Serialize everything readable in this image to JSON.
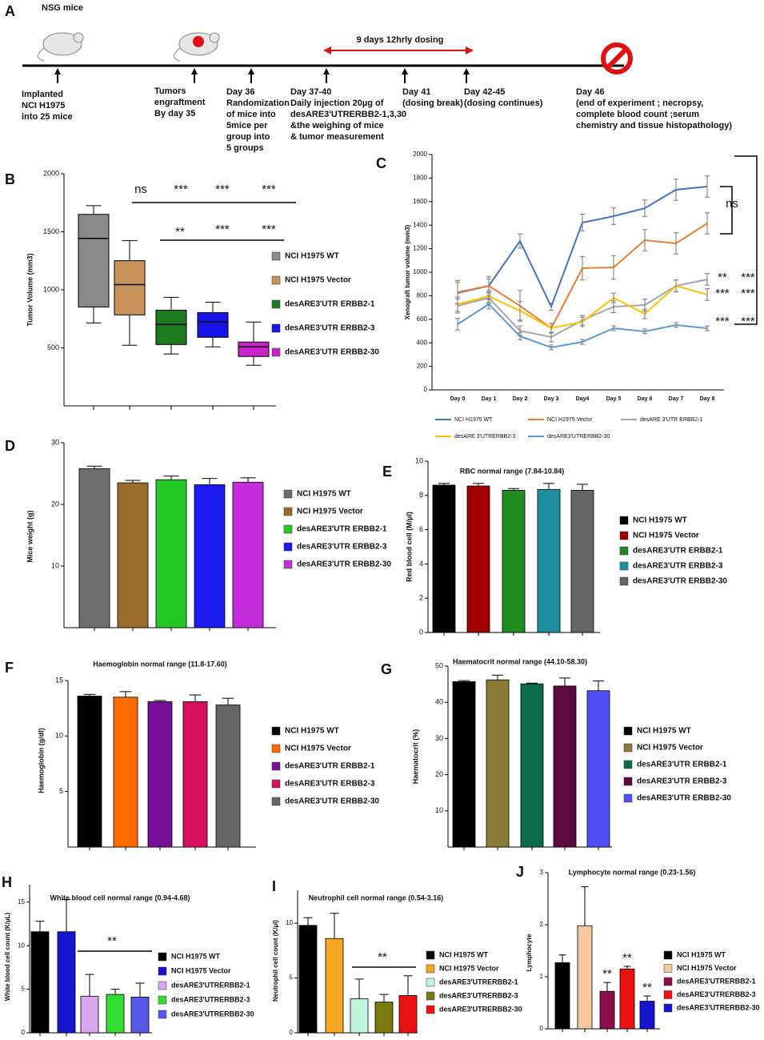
{
  "timeline": {
    "panel": "A",
    "subtitle": "NSG mice",
    "dosing": "9 days  12hrly dosing",
    "events": [
      {
        "lines": [
          "Implanted",
          "NCI H1975",
          "into 25 mice"
        ]
      },
      {
        "lines": [
          "Tumors",
          "engraftment",
          "By day 35"
        ]
      },
      {
        "lines": [
          "Day 36",
          "Randomization",
          "of mice into",
          "5mice per",
          "group into",
          "5 groups"
        ]
      },
      {
        "lines": [
          "Day 37-40",
          "Daily injection 20µg  of",
          "desARE3'UTRERBB2-1,3,30",
          "&the  weighing of mice",
          "& tumor measurement"
        ]
      },
      {
        "lines": [
          "Day 41",
          "(dosing break)"
        ]
      },
      {
        "lines": [
          "Day 42-45",
          "(dosing continues)"
        ]
      },
      {
        "lines": [
          "Day  46",
          "(end of experiment ; necropsy,",
          "complete blood count ;serum",
          "chemistry and  tissue histopathology)"
        ]
      }
    ]
  },
  "chart_data": [
    {
      "type": "box",
      "panel": "B",
      "ylabel": "Tumor  Volume (mm3)",
      "ylim": [
        0,
        2000
      ],
      "yticks": [
        500,
        1000,
        1500,
        2000
      ],
      "series": [
        {
          "name": "NCI H1975 WT",
          "color": "#8a8a8a",
          "min": 715,
          "q1": 852,
          "median": 1443,
          "q3": 1650,
          "max": 1725
        },
        {
          "name": "NCI H1975 Vector",
          "color": "#c8935a",
          "min": 522,
          "q1": 784,
          "median": 1045,
          "q3": 1251,
          "max": 1423
        },
        {
          "name": "desARE3'UTR ERBB2-1",
          "color": "#1e7a1e",
          "min": 447,
          "q1": 529,
          "median": 701,
          "q3": 825,
          "max": 935
        },
        {
          "name": "desARE3'UTR ERBB2-3",
          "color": "#1515e8",
          "min": 509,
          "q1": 591,
          "median": 722,
          "q3": 804,
          "max": 893
        },
        {
          "name": "desARE3'UTR ERBB2-30",
          "color": "#cc22cc",
          "min": 350,
          "q1": 426,
          "median": 509,
          "q3": 550,
          "max": 722
        }
      ],
      "annotations": [
        "ns",
        "***",
        "***",
        "***",
        "**",
        "***",
        "***"
      ]
    },
    {
      "type": "line",
      "panel": "C",
      "ylabel": "Xenograft tumor  volume (mm3)",
      "ylim": [
        0,
        2000
      ],
      "yticks": [
        0,
        200,
        400,
        600,
        800,
        1000,
        1200,
        1400,
        1600,
        1800,
        2000
      ],
      "categories": [
        "Day 0",
        "Day 1",
        "Day 2",
        "Day 3",
        "Day4",
        "Day 5",
        "Day 6",
        "Day 7",
        "Day 8"
      ],
      "series": [
        {
          "name": "NCI H1975 WT",
          "color": "#4472c4",
          "values": [
            823,
            884,
            1265,
            707,
            1422,
            1476,
            1544,
            1701,
            1728
          ],
          "errors": [
            90,
            60,
            60,
            30,
            70,
            70,
            70,
            90,
            90
          ]
        },
        {
          "name": "NCI H1975 Vector",
          "color": "#ed7d31",
          "values": [
            830,
            884,
            714,
            524,
            1034,
            1041,
            1272,
            1245,
            1415
          ],
          "errors": [
            100,
            80,
            130,
            40,
            100,
            100,
            90,
            90,
            90
          ]
        },
        {
          "name": "desARE 3'UTR ERBB2-1",
          "color": "#a5a5a5",
          "values": [
            714,
            782,
            503,
            449,
            592,
            707,
            721,
            884,
            939
          ],
          "errors": [
            60,
            50,
            40,
            40,
            40,
            50,
            50,
            50,
            50
          ]
        },
        {
          "name": "desARE 3'UTRERBB2-3",
          "color": "#ffc000",
          "values": [
            728,
            796,
            673,
            524,
            578,
            782,
            646,
            884,
            810
          ],
          "errors": [
            60,
            50,
            80,
            40,
            40,
            40,
            40,
            50,
            50
          ]
        },
        {
          "name": "desARE3'UTRERBB2-30",
          "color": "#5b9bd5",
          "values": [
            558,
            728,
            456,
            361,
            408,
            524,
            497,
            551,
            524
          ],
          "errors": [
            50,
            40,
            30,
            20,
            20,
            20,
            20,
            20,
            20
          ]
        }
      ],
      "annotations": [
        "ns",
        "**",
        "***",
        "***",
        "***",
        "***",
        "***"
      ]
    },
    {
      "type": "bar",
      "panel": "D",
      "ylabel": "Mice weight (g)",
      "ylim": [
        0,
        30
      ],
      "yticks": [
        10,
        20,
        30
      ],
      "series": [
        {
          "name": "NCI H1975 WT",
          "color": "#6e6e6e",
          "value": 25.8,
          "error": 0.4
        },
        {
          "name": "NCI H1975 Vector",
          "color": "#9a6b2a",
          "value": 23.5,
          "error": 0.4
        },
        {
          "name": "desARE3'UTR ERBB2-1",
          "color": "#22c922",
          "value": 24,
          "error": 0.6
        },
        {
          "name": "desARE3'UTR ERBB2-3",
          "color": "#1c1cf0",
          "value": 23.2,
          "error": 1
        },
        {
          "name": "desARE3'UTR ERBB2-30",
          "color": "#c22cd9",
          "value": 23.6,
          "error": 0.7
        }
      ]
    },
    {
      "type": "bar",
      "panel": "E",
      "title": "RBC normal range (7.84-10.84)",
      "ylabel": "Red blood cell (M/µl)",
      "ylim": [
        0,
        10
      ],
      "yticks": [
        0,
        2,
        4,
        6,
        8,
        10
      ],
      "series": [
        {
          "name": "NCI H1975 WT",
          "color": "#000000",
          "value": 8.6,
          "error": 0.1
        },
        {
          "name": "NCI H1975 Vector",
          "color": "#a00000",
          "value": 8.55,
          "error": 0.15
        },
        {
          "name": "desARE3'UTR ERBB2-1",
          "color": "#1e8c1e",
          "value": 8.3,
          "error": 0.1
        },
        {
          "name": "desARE3'UTR ERBB2-3",
          "color": "#1f8fa0",
          "value": 8.35,
          "error": 0.35
        },
        {
          "name": "desARE3'UTR ERBB2-30",
          "color": "#666666",
          "value": 8.3,
          "error": 0.35
        }
      ]
    },
    {
      "type": "bar",
      "panel": "F",
      "title": "Haemoglobin  normal range (11.8-17.60)",
      "ylabel": "Haemoglobin (g/dl)",
      "ylim": [
        0,
        15
      ],
      "yticks": [
        5,
        10,
        15
      ],
      "series": [
        {
          "name": "NCI H1975 WT",
          "color": "#000000",
          "value": 13.6,
          "error": 0.15
        },
        {
          "name": "NCI H1975 Vector",
          "color": "#ff6a00",
          "value": 13.5,
          "error": 0.5
        },
        {
          "name": "desARE3'UTR ERBB2-1",
          "color": "#7a0f99",
          "value": 13.1,
          "error": 0.1
        },
        {
          "name": "desARE3'UTR ERBB2-3",
          "color": "#d6105f",
          "value": 13.1,
          "error": 0.6
        },
        {
          "name": "desARE3'UTR ERBB2-30",
          "color": "#666666",
          "value": 12.8,
          "error": 0.6
        }
      ]
    },
    {
      "type": "bar",
      "panel": "G",
      "title": "Haematocrit normal range (44.10-58.30)",
      "ylabel": "Haematocrit (%)",
      "ylim": [
        0,
        50
      ],
      "yticks": [
        10,
        20,
        30,
        40,
        50
      ],
      "series": [
        {
          "name": "NCI H1975 WT",
          "color": "#000000",
          "value": 45.7,
          "error": 0.3
        },
        {
          "name": "NCI H1975 Vector",
          "color": "#8c7a38",
          "value": 46.2,
          "error": 1.3
        },
        {
          "name": "desARE3'UTR ERBB2-1",
          "color": "#0c6b4a",
          "value": 45.1,
          "error": 0.2
        },
        {
          "name": "desARE3'UTR ERBB2-3",
          "color": "#5c0a40",
          "value": 44.5,
          "error": 2.2
        },
        {
          "name": "desARE3'UTR ERBB2-30",
          "color": "#4f4ff5",
          "value": 43.2,
          "error": 2.7
        }
      ]
    },
    {
      "type": "bar",
      "panel": "H",
      "title": "White blood cell  normal range (0.94-4.68)",
      "ylabel": "White blood cell count (K/µL)",
      "ylim": [
        0,
        17
      ],
      "yticks": [
        0,
        5,
        10,
        15
      ],
      "series": [
        {
          "name": "NCI H1975 WT",
          "color": "#000000",
          "value": 11.6,
          "error": 1.2
        },
        {
          "name": "NCI H1975 Vector",
          "color": "#1515d0",
          "value": 11.6,
          "error": 3.7
        },
        {
          "name": "desARE3'UTRERBB2-1",
          "color": "#d9a6f0",
          "value": 4.2,
          "error": 2.5
        },
        {
          "name": "desARE3'UTRERBB2-3",
          "color": "#33dd33",
          "value": 4.4,
          "error": 0.6
        },
        {
          "name": "desARE3'UTRERBB2-30",
          "color": "#5858e8",
          "value": 4.1,
          "error": 1.6
        }
      ],
      "annotations": [
        "**"
      ]
    },
    {
      "type": "bar",
      "panel": "I",
      "title": "Neutrophil cell normal range (0.54-3.16)",
      "ylabel": "Neutrophil cell count (K/µl)",
      "ylim": [
        0,
        13
      ],
      "yticks": [
        0,
        5,
        10
      ],
      "series": [
        {
          "name": "NCI H1975 WT",
          "color": "#000000",
          "value": 9.8,
          "error": 0.7
        },
        {
          "name": "NCI H1975 Vector",
          "color": "#f5a623",
          "value": 8.6,
          "error": 2.3
        },
        {
          "name": "desARE3'UTRERBB2-1",
          "color": "#bff5dc",
          "value": 3.1,
          "error": 1.8
        },
        {
          "name": "desARE3'UTRERBB2-3",
          "color": "#7a7a10",
          "value": 2.8,
          "error": 0.7
        },
        {
          "name": "desARE3'UTRERBB2-30",
          "color": "#ee1111",
          "value": 3.4,
          "error": 1.8
        }
      ],
      "annotations": [
        "**"
      ]
    },
    {
      "type": "bar",
      "panel": "J",
      "title": "Lymphocyte normal range (0.23-1.56)",
      "ylabel": "Lymphocyte",
      "ylim": [
        0,
        3
      ],
      "yticks": [
        0,
        1,
        2,
        3
      ],
      "series": [
        {
          "name": "NCI H1975 WT",
          "color": "#000000",
          "value": 1.27,
          "error": 0.15
        },
        {
          "name": "NCI H1975 Vector",
          "color": "#f5c8a0",
          "value": 1.98,
          "error": 0.75
        },
        {
          "name": "desARE3'UTRERBB2-1",
          "color": "#8a0e4a",
          "value": 0.72,
          "error": 0.17
        },
        {
          "name": "desARE3'UTRERBB2-3",
          "color": "#ee1111",
          "value": 1.15,
          "error": 0.05
        },
        {
          "name": "desARE3'UTRERBB2-30",
          "color": "#1515d0",
          "value": 0.53,
          "error": 0.1
        }
      ],
      "annotations": [
        "**",
        "**",
        "**"
      ]
    }
  ]
}
